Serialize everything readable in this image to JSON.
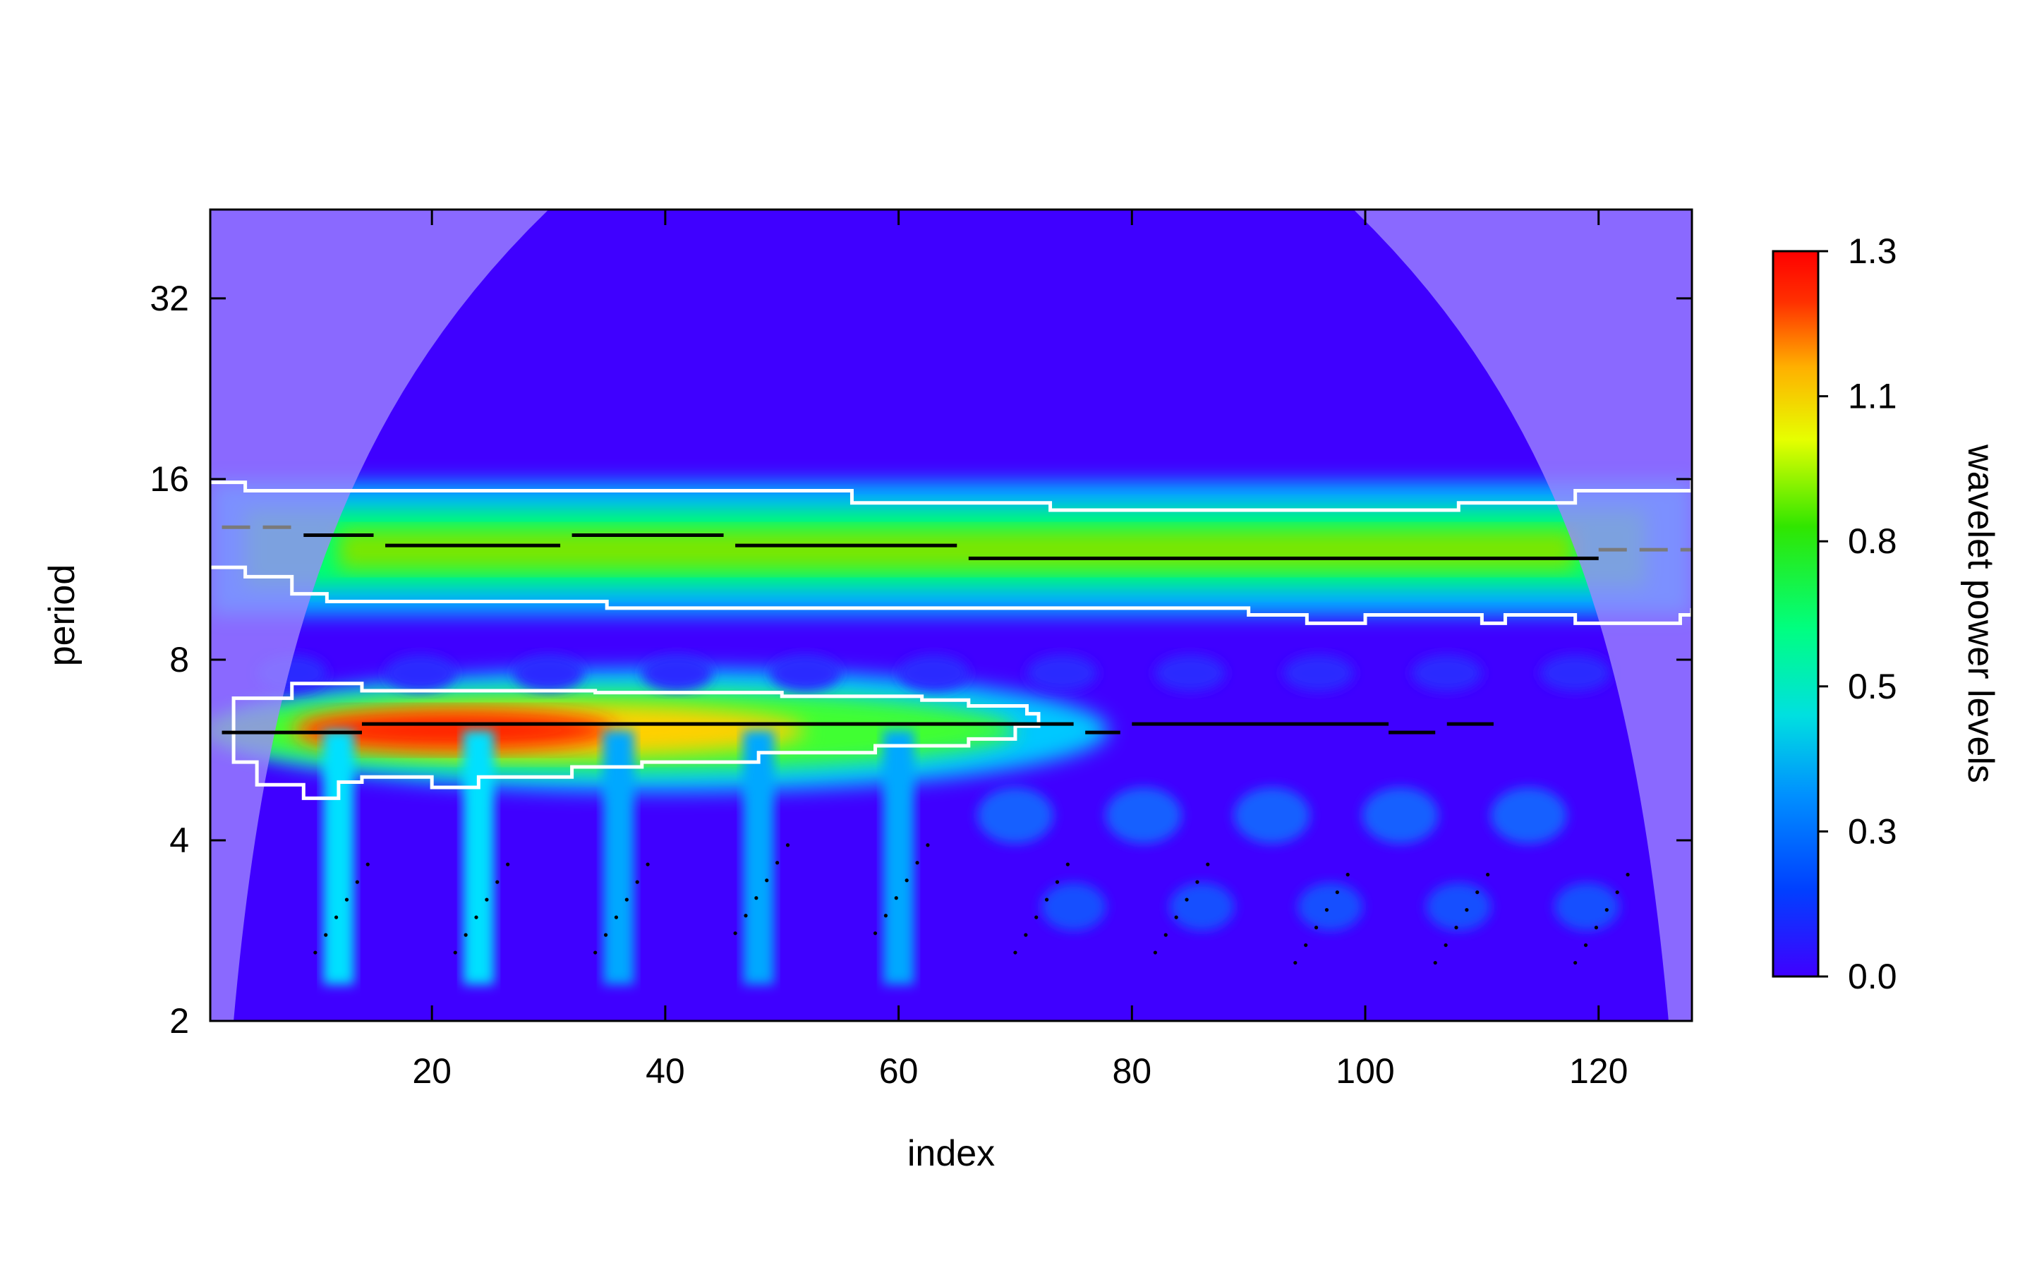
{
  "chart_data": {
    "type": "heatmap",
    "title": "",
    "xlabel": "index",
    "ylabel": "period",
    "xlim": [
      1,
      128
    ],
    "ylim": [
      2,
      45
    ],
    "y_scale": "log2",
    "x_ticks": [
      20,
      40,
      60,
      80,
      100,
      120
    ],
    "y_ticks": [
      2,
      4,
      8,
      16,
      32
    ],
    "colorbar": {
      "label": "wavelet power levels",
      "range": [
        0,
        1.3
      ],
      "tick_labels": [
        "0.0",
        "0.3",
        "0.5",
        "0.8",
        "1.1",
        "1.3"
      ],
      "colors": [
        "#3f00ff",
        "#0066ff",
        "#00d0ff",
        "#00ff8c",
        "#36e600",
        "#e6ff00",
        "#ffaa00",
        "#ff1a00",
        "#ff0000"
      ],
      "placement": "right"
    },
    "cone_of_influence": true,
    "shaded_outside_coi_color": "#9f86ff",
    "bands": [
      {
        "period_center": 12.2,
        "period_range": [
          10.3,
          14.6
        ],
        "x_range": [
          1,
          128
        ],
        "peak_power": 0.78
      },
      {
        "period_center": 6.1,
        "period_range": [
          5.0,
          7.2
        ],
        "x_range": [
          1,
          75
        ],
        "peak_power": 1.3,
        "peak_x": 22
      }
    ],
    "ridges": [
      {
        "x": [
          2,
          14
        ],
        "period": [
          6.05,
          6.05
        ]
      },
      {
        "x": [
          14,
          75
        ],
        "period": [
          6.25,
          6.25
        ]
      },
      {
        "x": [
          76,
          79
        ],
        "period": [
          6.05,
          6.05
        ]
      },
      {
        "x": [
          80,
          102
        ],
        "period": [
          6.25,
          6.25
        ]
      },
      {
        "x": [
          102,
          106
        ],
        "period": [
          6.05,
          6.05
        ]
      },
      {
        "x": [
          107,
          111
        ],
        "period": [
          6.25,
          6.25
        ]
      },
      {
        "x": [
          2,
          9
        ],
        "period": [
          13.3,
          13.3
        ]
      },
      {
        "x": [
          9,
          15
        ],
        "period": [
          12.9,
          12.9
        ]
      },
      {
        "x": [
          16,
          31
        ],
        "period": [
          12.4,
          12.4
        ]
      },
      {
        "x": [
          32,
          45
        ],
        "period": [
          12.9,
          12.9
        ]
      },
      {
        "x": [
          46,
          65
        ],
        "period": [
          12.4,
          12.4
        ]
      },
      {
        "x": [
          66,
          120
        ],
        "period": [
          11.8,
          11.8
        ]
      },
      {
        "x": [
          120,
          128
        ],
        "period": [
          12.2,
          12.2
        ]
      }
    ]
  }
}
